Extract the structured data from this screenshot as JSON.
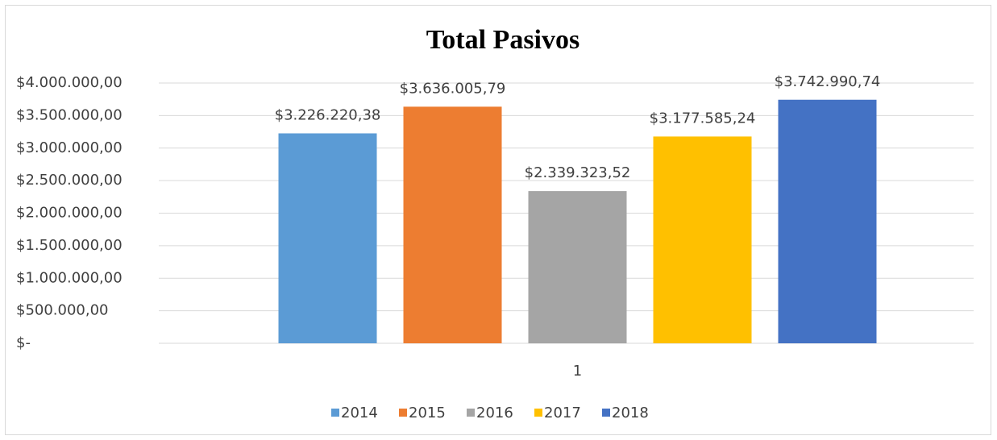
{
  "chart_data": {
    "type": "bar",
    "title": "Total Pasivos",
    "categories": [
      "1"
    ],
    "series": [
      {
        "name": "2014",
        "color": "#5b9bd5",
        "values": [
          3226220.38
        ],
        "value_labels": [
          "$3.226.220,38"
        ]
      },
      {
        "name": "2015",
        "color": "#ed7d31",
        "values": [
          3636005.79
        ],
        "value_labels": [
          "$3.636.005,79"
        ]
      },
      {
        "name": "2016",
        "color": "#a5a5a5",
        "values": [
          2339323.52
        ],
        "value_labels": [
          "$2.339.323,52"
        ]
      },
      {
        "name": "2017",
        "color": "#ffc000",
        "values": [
          3177585.24
        ],
        "value_labels": [
          "$3.177.585,24"
        ]
      },
      {
        "name": "2018",
        "color": "#4472c4",
        "values": [
          3742990.74
        ],
        "value_labels": [
          "$3.742.990,74"
        ]
      }
    ],
    "ylim": [
      0,
      4000000
    ],
    "yticks": [
      {
        "value": 0,
        "label": "$-"
      },
      {
        "value": 500000,
        "label": "$500.000,00"
      },
      {
        "value": 1000000,
        "label": "$1.000.000,00"
      },
      {
        "value": 1500000,
        "label": "$1.500.000,00"
      },
      {
        "value": 2000000,
        "label": "$2.000.000,00"
      },
      {
        "value": 2500000,
        "label": "$2.500.000,00"
      },
      {
        "value": 3000000,
        "label": "$3.000.000,00"
      },
      {
        "value": 3500000,
        "label": "$3.500.000,00"
      },
      {
        "value": 4000000,
        "label": "$4.000.000,00"
      }
    ],
    "grid": true,
    "legend": "bottom"
  }
}
